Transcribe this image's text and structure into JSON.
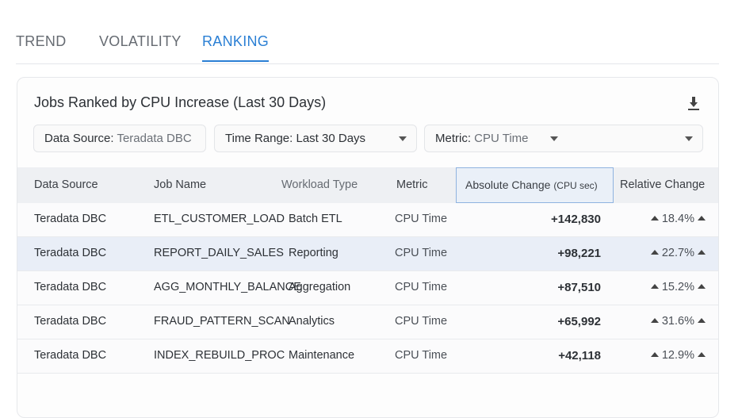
{
  "tabs": [
    {
      "label": "TREND"
    },
    {
      "label": "VOLATILITY"
    },
    {
      "label": "RANKING",
      "active": true
    }
  ],
  "card": {
    "title": "Jobs Ranked by CPU Increase (Last 30 Days)",
    "download_icon": "download-icon"
  },
  "filters": {
    "data_source": {
      "label": "Data Source:",
      "value": "Teradata DBC"
    },
    "time_range": {
      "label": "Time Range:",
      "value": "Last 30 Days"
    },
    "metric": {
      "label": "Metric:",
      "value": "CPU Time"
    }
  },
  "table": {
    "headers": {
      "data_source": "Data Source",
      "job_name": "Job Name",
      "workload_type": "Workload Type",
      "metric": "Metric",
      "absolute_change": "Absolute Change",
      "absolute_unit": "(CPU sec)",
      "relative_change": "Relative Change"
    },
    "rows": [
      {
        "data_source": "Teradata DBC",
        "job_name": "ETL_CUSTOMER_LOAD",
        "workload_type": "Batch ETL",
        "metric": "CPU Time",
        "absolute_change": "+142,830",
        "relative_change": "18.4%"
      },
      {
        "data_source": "Teradata DBC",
        "job_name": "REPORT_DAILY_SALES",
        "workload_type": "Reporting",
        "metric": "CPU Time",
        "absolute_change": "+98,221",
        "relative_change": "22.7%",
        "selected": true
      },
      {
        "data_source": "Teradata DBC",
        "job_name": "AGG_MONTHLY_BALANCE",
        "workload_type": "Aggregation",
        "metric": "CPU Time",
        "absolute_change": "+87,510",
        "relative_change": "15.2%"
      },
      {
        "data_source": "Teradata DBC",
        "job_name": "FRAUD_PATTERN_SCAN",
        "workload_type": "Analytics",
        "metric": "CPU Time",
        "absolute_change": "+65,992",
        "relative_change": "31.6%"
      },
      {
        "data_source": "Teradata DBC",
        "job_name": "INDEX_REBUILD_PROC",
        "workload_type": "Maintenance",
        "metric": "CPU Time",
        "absolute_change": "+42,118",
        "relative_change": "12.9%"
      }
    ]
  },
  "colors": {
    "accent": "#2a7fd4",
    "selected_row": "#e9eef7",
    "header_bg": "#eef0f3"
  }
}
